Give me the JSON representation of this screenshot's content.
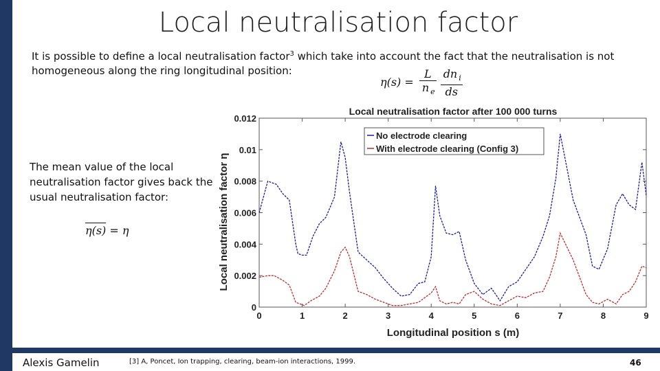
{
  "slide": {
    "title": "Local neutralisation factor",
    "intro_pre": "It is possible to define a local neutralisation factor",
    "intro_sup": "3",
    "intro_post": " which take into account the fact that the neutralisation is not homogeneous along the ring longitudinal position:",
    "formula1": {
      "lhs": "η(s) = ",
      "frac1_num": "L",
      "frac1_den": "n",
      "frac1_den_sub": "e",
      "frac2_num": "dn",
      "frac2_num_sub": "i",
      "frac2_den": "ds"
    },
    "mean_text": "The mean value of the local neutralisation factor gives back the usual neutralisation factor:",
    "formula2": {
      "lhs": "η(s)",
      "rhs": " = η"
    },
    "footer_author": "Alexis Gamelin",
    "footer_ref": "[3] A, Poncet, Ion trapping, clearing, beam-ion interactions, 1999.",
    "page_number": "46"
  },
  "chart_data": {
    "type": "line",
    "title": "Local neutralisation factor after 100 000 turns",
    "xlabel": "Longitudinal position s (m)",
    "ylabel": "Local neutralisation factor η",
    "xlim": [
      0,
      9
    ],
    "ylim": [
      0,
      0.012
    ],
    "xticks": [
      "0",
      "1",
      "2",
      "3",
      "4",
      "5",
      "6",
      "7",
      "8",
      "9"
    ],
    "yticks": [
      "0",
      "0.002",
      "0.004",
      "0.006",
      "0.008",
      "0.01",
      "0.012"
    ],
    "grid": false,
    "legend_position": "top-right",
    "series": [
      {
        "name": "No electrode clearing",
        "color": "#1a1aa6",
        "x": [
          0,
          0.2,
          0.4,
          0.55,
          0.7,
          0.85,
          0.9,
          1.0,
          1.1,
          1.25,
          1.4,
          1.55,
          1.75,
          1.9,
          2.0,
          2.1,
          2.3,
          2.5,
          2.7,
          2.9,
          3.1,
          3.3,
          3.5,
          3.7,
          3.85,
          4.0,
          4.1,
          4.2,
          4.35,
          4.5,
          4.65,
          4.8,
          5.0,
          5.2,
          5.4,
          5.6,
          5.8,
          6.0,
          6.2,
          6.4,
          6.6,
          6.75,
          6.9,
          7.0,
          7.3,
          7.6,
          7.75,
          7.9,
          8.1,
          8.3,
          8.45,
          8.6,
          8.75,
          8.9,
          9.0
        ],
        "values": [
          0.006,
          0.008,
          0.0078,
          0.0072,
          0.0068,
          0.004,
          0.0034,
          0.0033,
          0.0033,
          0.0045,
          0.0053,
          0.0057,
          0.007,
          0.0105,
          0.0095,
          0.0073,
          0.0035,
          0.003,
          0.0025,
          0.0018,
          0.0012,
          0.0007,
          0.0008,
          0.0015,
          0.0016,
          0.0032,
          0.0077,
          0.0058,
          0.0047,
          0.0046,
          0.0048,
          0.003,
          0.0015,
          0.0008,
          0.0012,
          0.0004,
          0.0013,
          0.0016,
          0.0024,
          0.0032,
          0.0045,
          0.0058,
          0.0082,
          0.011,
          0.0068,
          0.0046,
          0.0026,
          0.0024,
          0.0037,
          0.0065,
          0.0072,
          0.0065,
          0.0062,
          0.0092,
          0.0071
        ]
      },
      {
        "name": "With electrode clearing (Config 3)",
        "color": "#c62828",
        "x": [
          0,
          0.2,
          0.35,
          0.55,
          0.7,
          0.85,
          0.95,
          1.05,
          1.2,
          1.4,
          1.55,
          1.75,
          1.9,
          2.0,
          2.1,
          2.3,
          2.5,
          2.7,
          2.9,
          3.1,
          3.3,
          3.5,
          3.7,
          3.85,
          4.0,
          4.1,
          4.2,
          4.35,
          4.5,
          4.65,
          4.8,
          5.0,
          5.2,
          5.4,
          5.6,
          5.8,
          6.0,
          6.2,
          6.4,
          6.6,
          6.75,
          6.9,
          7.0,
          7.3,
          7.6,
          7.75,
          7.9,
          8.1,
          8.3,
          8.45,
          8.6,
          8.75,
          8.9,
          9.0
        ],
        "values": [
          0.0019,
          0.002,
          0.002,
          0.0017,
          0.0014,
          0.0003,
          0.0002,
          0.0001,
          0.0004,
          0.0007,
          0.0012,
          0.0023,
          0.0035,
          0.0038,
          0.0032,
          0.001,
          0.0008,
          0.0005,
          0.0003,
          0.0001,
          0.0001,
          0.0002,
          0.0003,
          0.0006,
          0.0009,
          0.0013,
          0.0004,
          0.0002,
          0.0003,
          0.0002,
          0.0008,
          0.001,
          0.0005,
          0.0002,
          0.0001,
          0.0004,
          0.0007,
          0.0006,
          0.0009,
          0.001,
          0.0019,
          0.0032,
          0.0047,
          0.003,
          0.0008,
          0.0003,
          0.0002,
          0.0005,
          0.0002,
          0.0008,
          0.001,
          0.0016,
          0.0026,
          0.0025
        ]
      }
    ]
  }
}
